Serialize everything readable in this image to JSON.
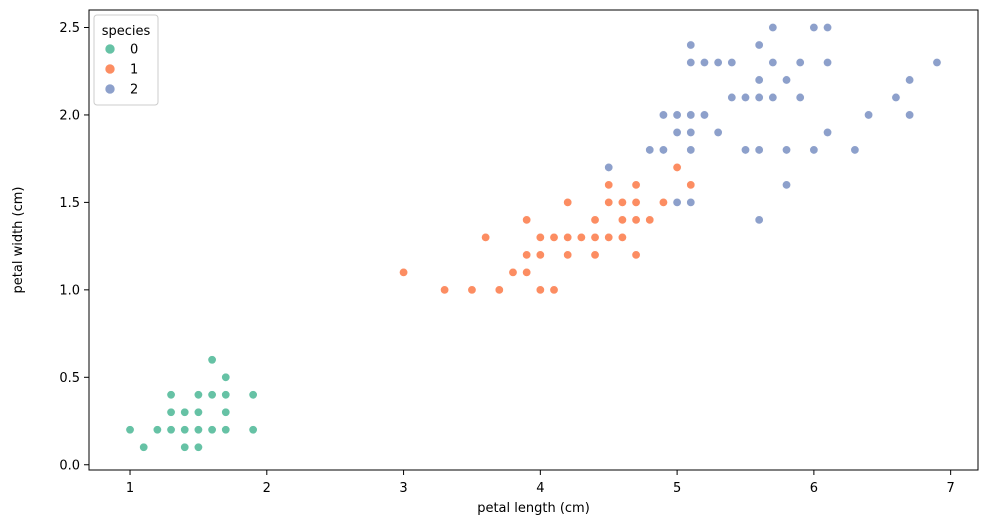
{
  "chart_data": {
    "type": "scatter",
    "title": "",
    "xlabel": "petal length (cm)",
    "ylabel": "petal width (cm)",
    "xlim": [
      0.7,
      7.2
    ],
    "ylim": [
      -0.03,
      2.6
    ],
    "x_ticks": [
      1,
      2,
      3,
      4,
      5,
      6,
      7
    ],
    "y_ticks": [
      0.0,
      0.5,
      1.0,
      1.5,
      2.0,
      2.5
    ],
    "x_tick_labels": [
      "1",
      "2",
      "3",
      "4",
      "5",
      "6",
      "7"
    ],
    "y_tick_labels": [
      "0.0",
      "0.5",
      "1.0",
      "1.5",
      "2.0",
      "2.5"
    ],
    "grid": false,
    "legend": {
      "title": "species",
      "placement": "top-left",
      "entries": [
        "0",
        "1",
        "2"
      ]
    },
    "series": [
      {
        "name": "0",
        "color": "#66c2a5",
        "points": [
          [
            1.0,
            0.2
          ],
          [
            1.1,
            0.1
          ],
          [
            1.2,
            0.2
          ],
          [
            1.3,
            0.2
          ],
          [
            1.3,
            0.3
          ],
          [
            1.3,
            0.4
          ],
          [
            1.4,
            0.1
          ],
          [
            1.4,
            0.2
          ],
          [
            1.4,
            0.3
          ],
          [
            1.5,
            0.1
          ],
          [
            1.5,
            0.2
          ],
          [
            1.5,
            0.3
          ],
          [
            1.5,
            0.4
          ],
          [
            1.6,
            0.2
          ],
          [
            1.6,
            0.4
          ],
          [
            1.6,
            0.6
          ],
          [
            1.7,
            0.2
          ],
          [
            1.7,
            0.3
          ],
          [
            1.7,
            0.4
          ],
          [
            1.7,
            0.5
          ],
          [
            1.9,
            0.2
          ],
          [
            1.9,
            0.4
          ]
        ]
      },
      {
        "name": "1",
        "color": "#fc8d62",
        "points": [
          [
            3.0,
            1.1
          ],
          [
            3.3,
            1.0
          ],
          [
            3.5,
            1.0
          ],
          [
            3.6,
            1.3
          ],
          [
            3.7,
            1.0
          ],
          [
            3.8,
            1.1
          ],
          [
            3.9,
            1.1
          ],
          [
            3.9,
            1.2
          ],
          [
            3.9,
            1.4
          ],
          [
            4.0,
            1.0
          ],
          [
            4.0,
            1.2
          ],
          [
            4.0,
            1.3
          ],
          [
            4.1,
            1.0
          ],
          [
            4.1,
            1.3
          ],
          [
            4.2,
            1.2
          ],
          [
            4.2,
            1.3
          ],
          [
            4.2,
            1.5
          ],
          [
            4.3,
            1.3
          ],
          [
            4.4,
            1.2
          ],
          [
            4.4,
            1.3
          ],
          [
            4.4,
            1.4
          ],
          [
            4.5,
            1.3
          ],
          [
            4.5,
            1.5
          ],
          [
            4.5,
            1.6
          ],
          [
            4.6,
            1.3
          ],
          [
            4.6,
            1.4
          ],
          [
            4.6,
            1.5
          ],
          [
            4.7,
            1.2
          ],
          [
            4.7,
            1.4
          ],
          [
            4.7,
            1.5
          ],
          [
            4.7,
            1.6
          ],
          [
            4.8,
            1.4
          ],
          [
            4.9,
            1.5
          ],
          [
            5.0,
            1.7
          ],
          [
            5.1,
            1.6
          ]
        ]
      },
      {
        "name": "2",
        "color": "#8da0cb",
        "points": [
          [
            4.5,
            1.7
          ],
          [
            4.8,
            1.8
          ],
          [
            4.9,
            1.8
          ],
          [
            4.9,
            2.0
          ],
          [
            5.0,
            1.5
          ],
          [
            5.0,
            1.9
          ],
          [
            5.0,
            2.0
          ],
          [
            5.1,
            1.5
          ],
          [
            5.1,
            1.8
          ],
          [
            5.1,
            1.9
          ],
          [
            5.1,
            2.0
          ],
          [
            5.1,
            2.3
          ],
          [
            5.1,
            2.4
          ],
          [
            5.2,
            2.0
          ],
          [
            5.2,
            2.3
          ],
          [
            5.3,
            1.9
          ],
          [
            5.3,
            2.3
          ],
          [
            5.4,
            2.1
          ],
          [
            5.4,
            2.3
          ],
          [
            5.5,
            1.8
          ],
          [
            5.5,
            2.1
          ],
          [
            5.6,
            1.4
          ],
          [
            5.6,
            1.8
          ],
          [
            5.6,
            2.1
          ],
          [
            5.6,
            2.2
          ],
          [
            5.6,
            2.4
          ],
          [
            5.7,
            2.1
          ],
          [
            5.7,
            2.3
          ],
          [
            5.7,
            2.5
          ],
          [
            5.8,
            1.6
          ],
          [
            5.8,
            1.8
          ],
          [
            5.8,
            2.2
          ],
          [
            5.9,
            2.1
          ],
          [
            5.9,
            2.3
          ],
          [
            6.0,
            1.8
          ],
          [
            6.0,
            2.5
          ],
          [
            6.1,
            1.9
          ],
          [
            6.1,
            2.3
          ],
          [
            6.1,
            2.5
          ],
          [
            6.3,
            1.8
          ],
          [
            6.4,
            2.0
          ],
          [
            6.6,
            2.1
          ],
          [
            6.7,
            2.0
          ],
          [
            6.7,
            2.2
          ],
          [
            6.9,
            2.3
          ]
        ]
      }
    ]
  }
}
